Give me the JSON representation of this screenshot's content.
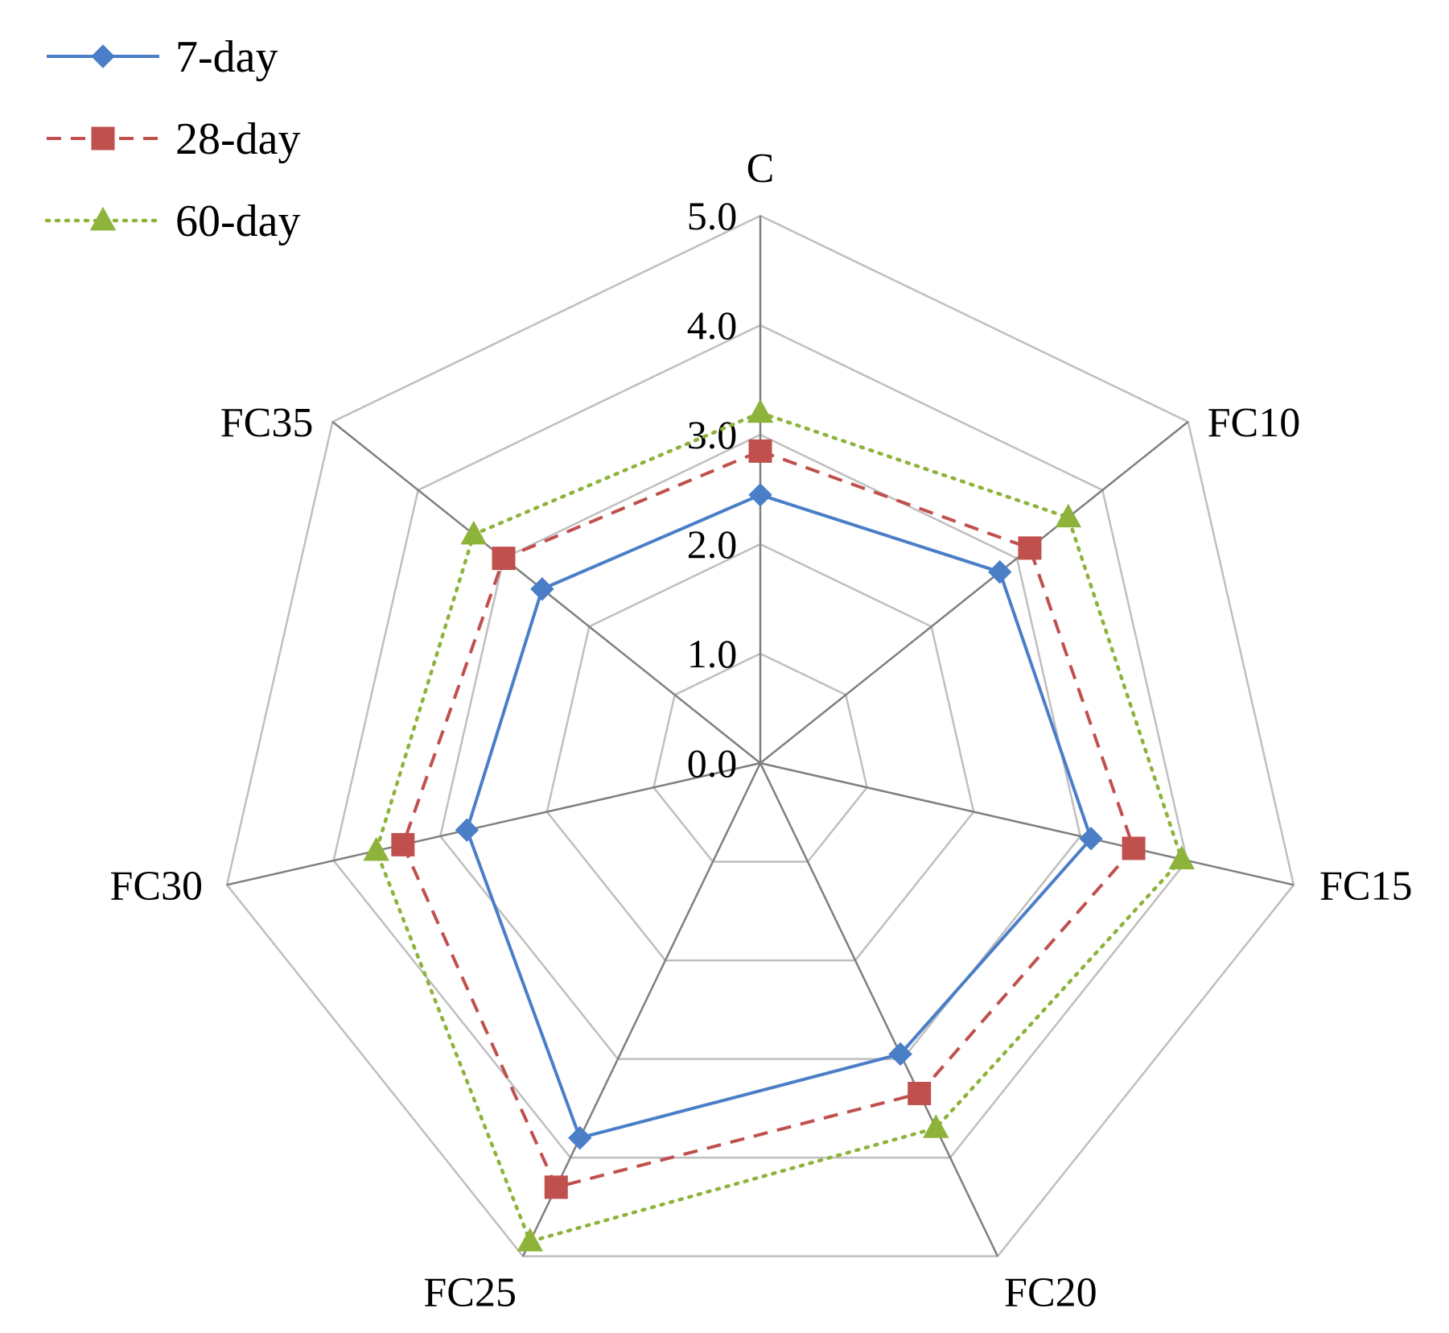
{
  "chart_data": {
    "type": "radar",
    "title": "",
    "categories": [
      "C",
      "FC10",
      "FC15",
      "FC20",
      "FC25",
      "FC30",
      "FC35"
    ],
    "rlim": [
      0,
      5
    ],
    "ticks": [
      "0.0",
      "1.0",
      "2.0",
      "3.0",
      "4.0",
      "5.0"
    ],
    "tick_values": [
      0,
      1,
      2,
      3,
      4,
      5
    ],
    "grid": true,
    "legend_position": "top-left",
    "series": [
      {
        "name": "7-day",
        "color": "#4A7EC7",
        "line_style": "solid",
        "marker": "diamond",
        "values": [
          2.45,
          2.8,
          3.1,
          2.95,
          3.8,
          2.75,
          2.55
        ]
      },
      {
        "name": "28-day",
        "color": "#C0504D",
        "line_style": "dashed",
        "marker": "square",
        "values": [
          2.85,
          3.15,
          3.5,
          3.35,
          4.3,
          3.35,
          3.0
        ]
      },
      {
        "name": "60-day",
        "color": "#8DB33A",
        "line_style": "dotted",
        "marker": "triangle",
        "values": [
          3.2,
          3.6,
          3.95,
          3.7,
          4.85,
          3.6,
          3.35
        ]
      }
    ]
  }
}
